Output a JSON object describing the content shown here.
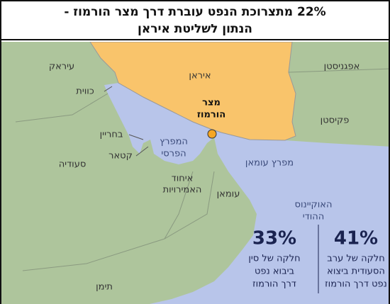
{
  "header": {
    "title": [
      "22% מתצרוכת הנפט עוברת דרך מצר הורמוז -",
      "הנתון לשליטת איראן"
    ]
  },
  "map": {
    "labels": {
      "iraq": "עיראק",
      "kuwait": "כווית",
      "iran": "איראן",
      "afghanistan": "אפגניסטן",
      "pakistan": "פקיסטן",
      "hormuz": [
        "מצר",
        "הורמוז"
      ],
      "persian_gulf": [
        "המפרץ",
        "הפרסי"
      ],
      "bahrain": "בחריין",
      "qatar": "קטאר",
      "saudi": "סעודיה",
      "uae": [
        "איחוד",
        "האמירויות"
      ],
      "oman": "עומאן",
      "gulf_of_oman": "מפרץ עומאן",
      "indian_ocean": [
        "האוקיינוס",
        "ההודי"
      ],
      "yemen": "תימן"
    }
  },
  "stats": [
    {
      "value": "33%",
      "lines": [
        "חלקה של סין",
        "ביבוא נפט",
        "דרך הורמוז"
      ]
    },
    {
      "value": "41%",
      "lines": [
        "חלקה של ערב",
        "הסעודית ביצוא",
        "נפט דרך הורמוז"
      ]
    }
  ]
}
